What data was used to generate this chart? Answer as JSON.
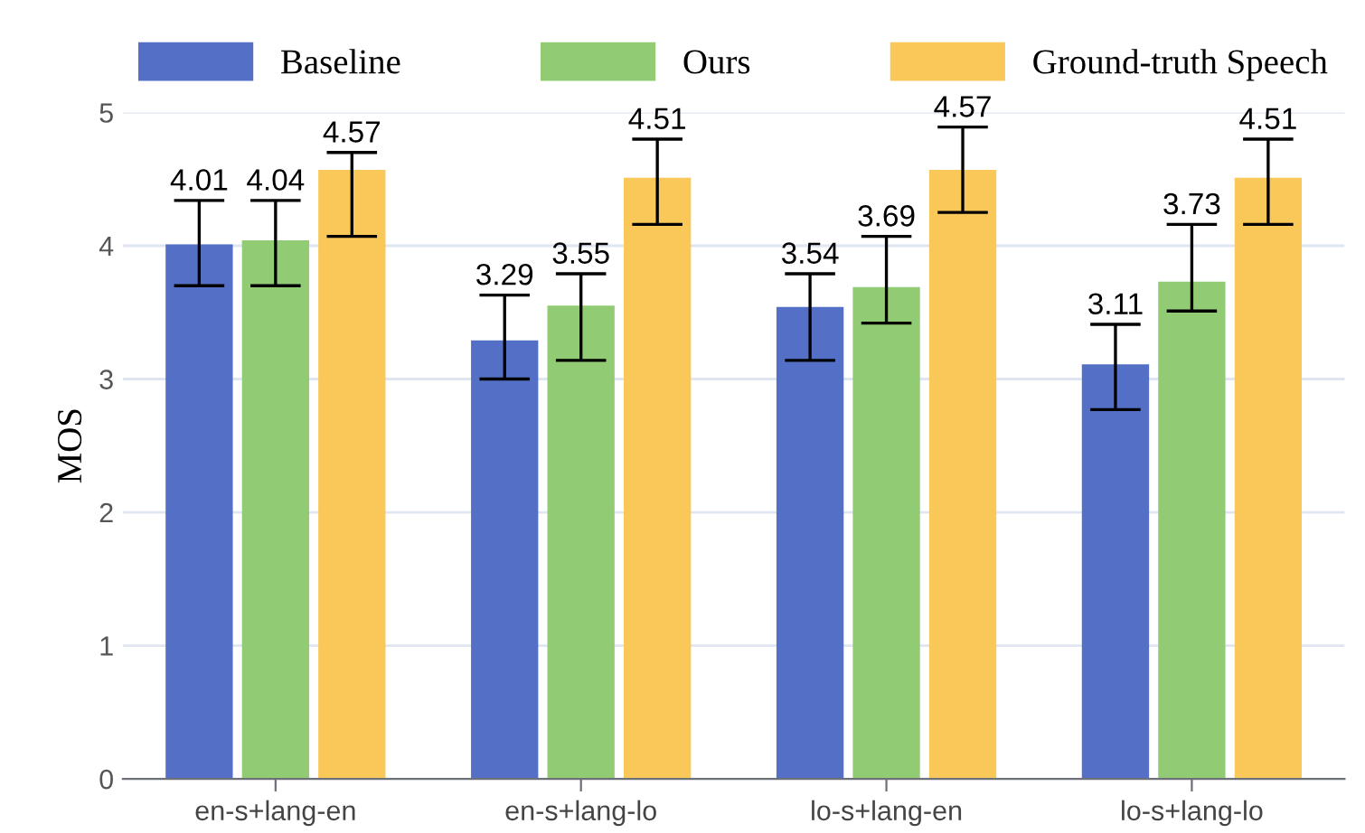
{
  "chart_data": {
    "type": "bar",
    "ylabel": "MOS",
    "categories": [
      "en-s+lang-en",
      "en-s+lang-lo",
      "lo-s+lang-en",
      "lo-s+lang-lo"
    ],
    "series": [
      {
        "name": "Baseline",
        "color": "#5470c6",
        "values": [
          4.01,
          3.29,
          3.54,
          3.11
        ],
        "errors": [
          [
            3.7,
            4.34
          ],
          [
            3.0,
            3.63
          ],
          [
            3.14,
            3.79
          ],
          [
            2.77,
            3.41
          ]
        ]
      },
      {
        "name": "Ours",
        "color": "#91cc75",
        "values": [
          4.04,
          3.55,
          3.69,
          3.73
        ],
        "errors": [
          [
            3.7,
            4.34
          ],
          [
            3.14,
            3.79
          ],
          [
            3.42,
            4.07
          ],
          [
            3.51,
            4.16
          ]
        ]
      },
      {
        "name": "Ground-truth Speech",
        "color": "#fac858",
        "values": [
          4.57,
          4.51,
          4.57,
          4.51
        ],
        "errors": [
          [
            4.07,
            4.7
          ],
          [
            4.16,
            4.8
          ],
          [
            4.25,
            4.89
          ],
          [
            4.16,
            4.8
          ]
        ]
      }
    ],
    "ylim": [
      0,
      5
    ],
    "yticks": [
      0,
      1,
      2,
      3,
      4,
      5
    ],
    "grid": "y",
    "legend": "top",
    "data_labels": true
  }
}
